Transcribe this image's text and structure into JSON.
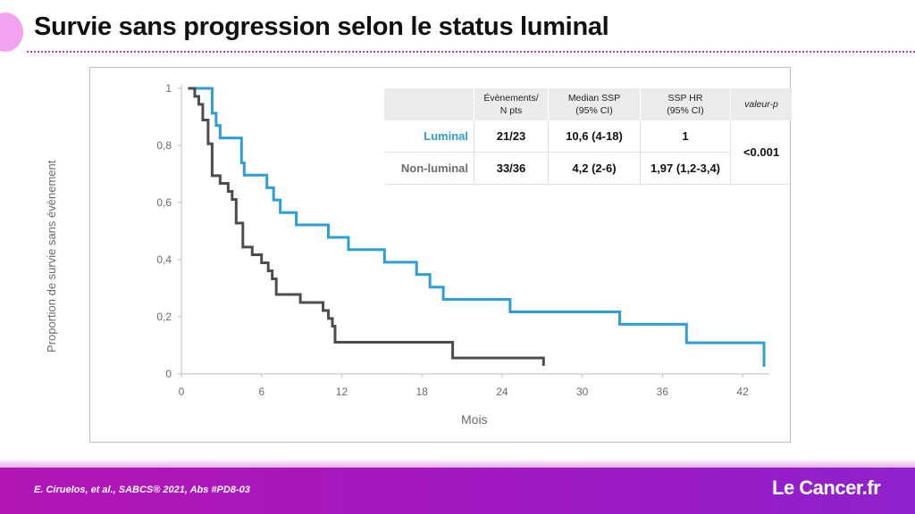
{
  "slide": {
    "title": "Survie sans progression selon le status luminal",
    "citation": "E. Ciruelos, et al., SABCS® 2021, Abs #PD8-03",
    "logo_text": "Le Cancer.fr"
  },
  "colors": {
    "luminal": "#2e9fd6",
    "non_luminal": "#4d4d4d",
    "accent": "#b216b6",
    "axis": "#bdbdbd"
  },
  "table": {
    "headers": [
      "Évènements/\nN pts",
      "Median SSP\n(95% CI)",
      "SSP HR\n(95% CI)",
      "valeur-p"
    ],
    "rows": [
      {
        "label": "Luminal",
        "events": "21/23",
        "median": "10,6 (4-18)",
        "hr": "1"
      },
      {
        "label": "Non-luminal",
        "events": "33/36",
        "median": "4,2 (2-6)",
        "hr": "1,97 (1,2-3,4)"
      }
    ],
    "p_value": "<0.001"
  },
  "chart_data": {
    "type": "line",
    "title": "",
    "xlabel": "Mois",
    "ylabel": "Proportion de survie sans évènement",
    "xlim": [
      0,
      44
    ],
    "ylim": [
      0,
      1
    ],
    "x_ticks": [
      "0",
      "6",
      "12",
      "18",
      "24",
      "30",
      "36",
      "42"
    ],
    "y_ticks": [
      "0",
      "0,2",
      "0,4",
      "0,6",
      "0,8",
      "1"
    ],
    "grid": false,
    "series": [
      {
        "name": "Luminal",
        "step": true,
        "x": [
          0.5,
          2.3,
          2.6,
          2.9,
          4.5,
          4.7,
          6.4,
          6.9,
          7.4,
          8.6,
          11.0,
          12.5,
          15.2,
          17.6,
          18.6,
          19.6,
          24.6,
          32.8,
          37.8,
          43.6,
          43.6
        ],
        "y": [
          1.0,
          0.913,
          0.87,
          0.826,
          0.739,
          0.696,
          0.652,
          0.609,
          0.565,
          0.522,
          0.478,
          0.435,
          0.391,
          0.348,
          0.304,
          0.261,
          0.217,
          0.174,
          0.109,
          0.065,
          0.025
        ]
      },
      {
        "name": "Non-luminal",
        "step": true,
        "x": [
          0.5,
          1.0,
          1.3,
          1.6,
          2.0,
          2.3,
          2.9,
          3.5,
          3.8,
          4.1,
          4.6,
          5.3,
          6.0,
          6.5,
          6.8,
          7.1,
          8.9,
          10.6,
          11.0,
          11.3,
          11.5,
          20.3,
          27.1,
          27.1
        ],
        "y": [
          1.0,
          0.972,
          0.944,
          0.889,
          0.806,
          0.694,
          0.667,
          0.639,
          0.611,
          0.528,
          0.444,
          0.417,
          0.389,
          0.361,
          0.333,
          0.278,
          0.25,
          0.222,
          0.194,
          0.167,
          0.111,
          0.056,
          0.053,
          0.028
        ]
      }
    ]
  }
}
